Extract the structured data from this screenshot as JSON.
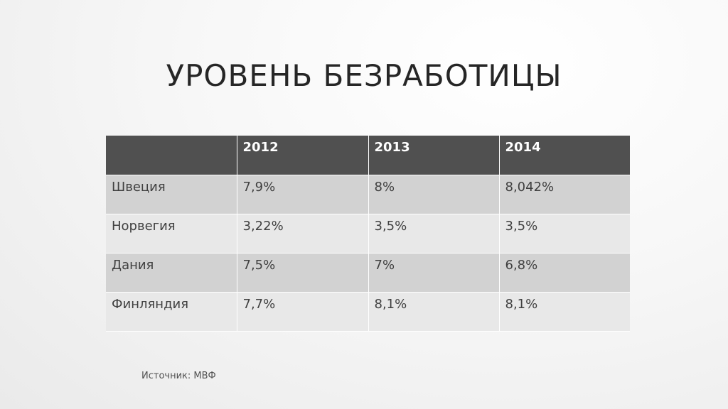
{
  "slide": {
    "title": "УРОВЕНЬ БЕЗРАБОТИЦЫ",
    "source": "Источник: МВФ"
  },
  "table": {
    "headers": [
      "",
      "2012",
      "2013",
      "2014"
    ],
    "rows": [
      [
        "Швеция",
        "7,9%",
        "8%",
        "8,042%"
      ],
      [
        "Норвегия",
        "3,22%",
        "3,5%",
        "3,5%"
      ],
      [
        "Дания",
        "7,5%",
        "7%",
        "6,8%"
      ],
      [
        "Финляндия",
        "7,7%",
        "8,1%",
        "8,1%"
      ]
    ]
  },
  "colors": {
    "header_bg": "#505050",
    "row_dark": "#d2d2d2",
    "row_light": "#e8e8e8"
  }
}
